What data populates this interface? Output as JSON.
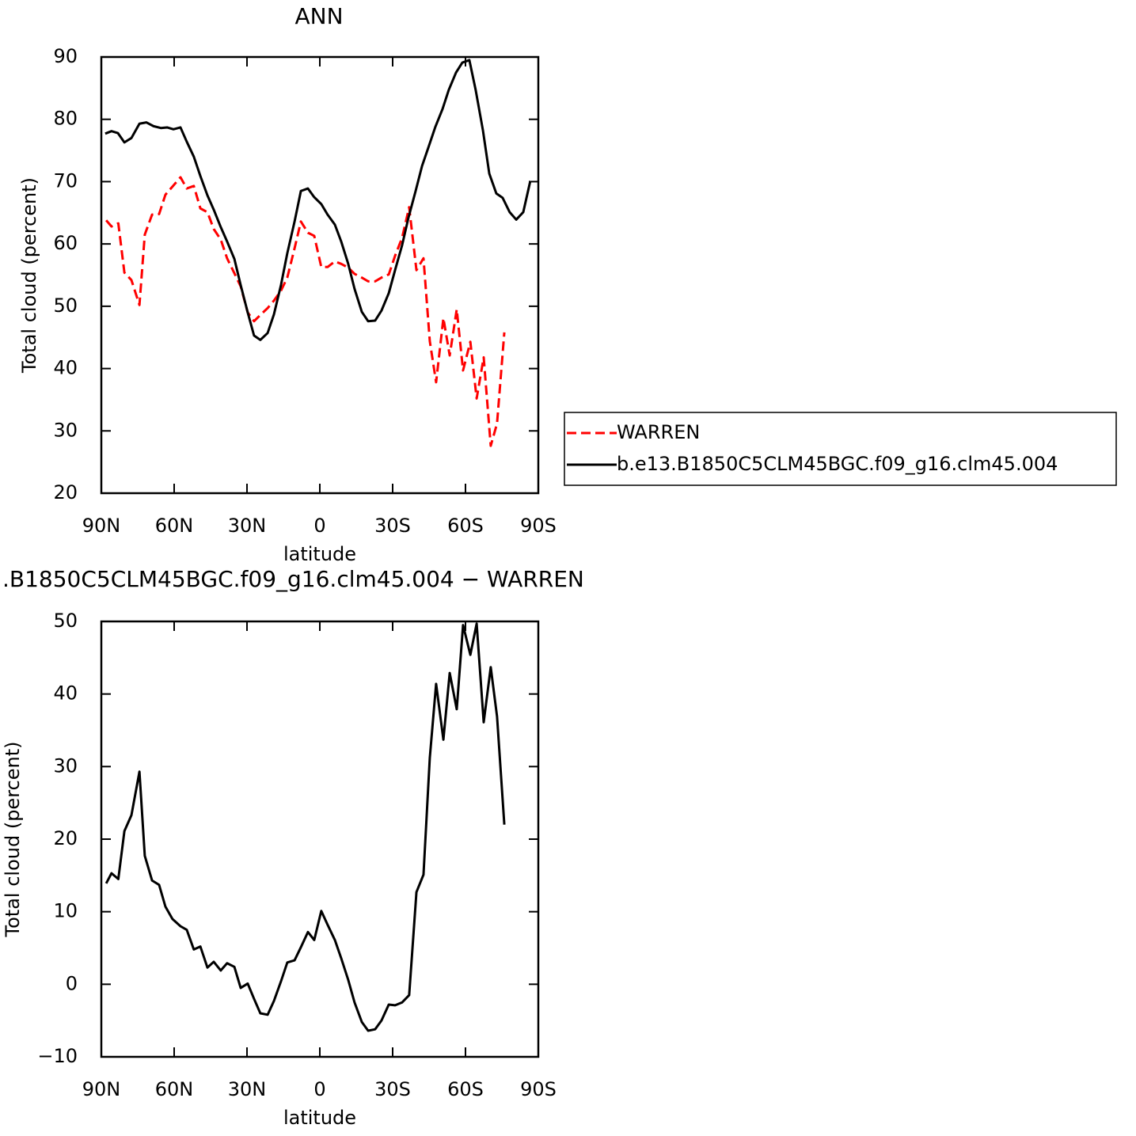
{
  "chart_data": [
    {
      "type": "line",
      "title": "ANN",
      "xlabel": "latitude",
      "ylabel": "Total cloud (percent)",
      "xlim": [
        90,
        -90
      ],
      "ylim": [
        20,
        90
      ],
      "xticks": [
        {
          "value": 90,
          "label": "90N"
        },
        {
          "value": 60,
          "label": "60N"
        },
        {
          "value": 30,
          "label": "30N"
        },
        0,
        {
          "value": -30,
          "label": "30S"
        },
        {
          "value": -60,
          "label": "60S"
        },
        {
          "value": -90,
          "label": "90S"
        }
      ],
      "yticks": [
        20,
        30,
        40,
        50,
        60,
        70,
        80,
        90
      ],
      "legend": "right",
      "series": [
        {
          "name": "WARREN",
          "color": "#ff0000",
          "dashed": true,
          "x": [
            88,
            85.8,
            83,
            80.5,
            77.6,
            74.3,
            72.1,
            69.1,
            66.2,
            63.6,
            60.7,
            57.4,
            54.8,
            51.9,
            49.2,
            46.3,
            43.7,
            40.8,
            38.2,
            35.2,
            32.6,
            29.7,
            27.1,
            24.5,
            21.5,
            18.9,
            16.0,
            13.4,
            10.4,
            7.8,
            4.9,
            2.3,
            -0.6,
            -3.2,
            -6.2,
            -8.8,
            -11.7,
            -14.3,
            -17.3,
            -19.9,
            -22.8,
            -25.4,
            -28.4,
            -31.0,
            -33.9,
            -36.8,
            -39.8,
            -42.7,
            -45.3,
            -47.9,
            -50.9,
            -53.5,
            -56.4,
            -59.0,
            -62.0,
            -64.6,
            -67.5,
            -70.4,
            -73.0,
            -76.0
          ],
          "values": [
            63.8,
            62.8,
            63.3,
            55.4,
            54.2,
            50.2,
            61.5,
            64.7,
            64.8,
            67.9,
            69.2,
            70.7,
            68.9,
            69.3,
            65.7,
            65.1,
            62.4,
            60.7,
            57.7,
            55.3,
            53.2,
            49.0,
            47.6,
            48.6,
            49.7,
            50.9,
            52.5,
            54.6,
            59.3,
            63.6,
            61.8,
            61.3,
            56.3,
            56.3,
            57.2,
            56.8,
            56.2,
            55.2,
            54.6,
            54.0,
            54.0,
            54.6,
            55.1,
            58.1,
            61.0,
            65.9,
            55.8,
            57.7,
            44.4,
            37.8,
            48.1,
            42.1,
            49.5,
            39.7,
            44.3,
            35.2,
            41.8,
            27.6,
            31.2,
            45.8
          ]
        },
        {
          "name": "b.e13.B1850C5CLM45BGC.f09_g16.clm45.004",
          "color": "#000000",
          "dashed": false,
          "x": [
            88.4,
            85.8,
            83.2,
            80.5,
            77.6,
            74.3,
            71.4,
            68.5,
            65.5,
            62.9,
            60.3,
            57.4,
            54.8,
            51.9,
            49.2,
            46.3,
            43.7,
            40.8,
            38.2,
            35.2,
            32.6,
            29.7,
            27.1,
            24.5,
            21.5,
            18.9,
            16.0,
            13.4,
            10.4,
            7.8,
            4.9,
            2.3,
            -0.6,
            -3.2,
            -6.2,
            -8.8,
            -11.7,
            -14.3,
            -17.3,
            -19.9,
            -22.8,
            -25.4,
            -28.4,
            -31.0,
            -33.9,
            -36.5,
            -39.4,
            -42.1,
            -45.0,
            -47.6,
            -50.5,
            -53.1,
            -56.1,
            -58.7,
            -61.6,
            -64.2,
            -67.2,
            -69.8,
            -72.7,
            -75.3,
            -78.2,
            -80.9,
            -83.8,
            -86.7
          ],
          "values": [
            77.7,
            78.1,
            77.8,
            76.3,
            77.0,
            79.3,
            79.5,
            78.9,
            78.6,
            78.7,
            78.4,
            78.7,
            76.4,
            74.0,
            70.9,
            67.8,
            65.5,
            62.7,
            60.4,
            57.6,
            53.4,
            49.0,
            45.3,
            44.6,
            45.7,
            48.7,
            53.4,
            58.5,
            63.6,
            68.5,
            68.9,
            67.5,
            66.4,
            64.7,
            63.1,
            60.4,
            56.8,
            52.8,
            49.1,
            47.6,
            47.7,
            49.3,
            52.1,
            55.8,
            59.8,
            64.2,
            68.4,
            72.5,
            75.8,
            78.8,
            81.6,
            84.7,
            87.5,
            89.1,
            89.5,
            84.7,
            78.2,
            71.3,
            68.1,
            67.4,
            65.1,
            63.9,
            65.1,
            70.1
          ]
        }
      ]
    },
    {
      "type": "line",
      "title": ".B1850C5CLM45BGC.f09_g16.clm45.004 − WARREN",
      "xlabel": "latitude",
      "ylabel": "Total cloud (percent)",
      "xlim": [
        90,
        -90
      ],
      "ylim": [
        -10,
        50
      ],
      "xticks": [
        {
          "value": 90,
          "label": "90N"
        },
        {
          "value": 60,
          "label": "60N"
        },
        {
          "value": 30,
          "label": "30N"
        },
        0,
        {
          "value": -30,
          "label": "30S"
        },
        {
          "value": -60,
          "label": "60S"
        },
        {
          "value": -90,
          "label": "90S"
        }
      ],
      "yticks": [
        {
          "value": -10,
          "label": "−10"
        },
        0,
        10,
        20,
        30,
        40,
        50
      ],
      "series": [
        {
          "color": "#000000",
          "dashed": false,
          "x": [
            88,
            85.8,
            83,
            80.5,
            77.6,
            74.3,
            72.1,
            69.1,
            66.2,
            63.6,
            60.7,
            57.4,
            54.8,
            51.9,
            49.2,
            46.3,
            43.7,
            40.8,
            38.2,
            35.2,
            32.6,
            29.7,
            27.1,
            24.5,
            21.5,
            18.9,
            16.0,
            13.4,
            10.4,
            7.8,
            4.9,
            2.3,
            -0.6,
            -3.2,
            -6.2,
            -8.8,
            -11.7,
            -14.3,
            -17.3,
            -19.9,
            -22.8,
            -25.4,
            -28.4,
            -31.0,
            -33.9,
            -36.8,
            -39.8,
            -42.7,
            -45.3,
            -47.9,
            -50.9,
            -53.5,
            -56.4,
            -59.0,
            -62.0,
            -64.6,
            -67.5,
            -70.4,
            -73.0,
            -76.0
          ],
          "values": [
            13.9,
            15.3,
            14.5,
            21.1,
            23.3,
            29.3,
            17.7,
            14.3,
            13.7,
            10.7,
            9.0,
            8.0,
            7.5,
            4.8,
            5.2,
            2.3,
            3.1,
            1.9,
            2.9,
            2.4,
            -0.5,
            0.1,
            -2.0,
            -4.0,
            -4.2,
            -2.3,
            0.4,
            3.0,
            3.3,
            5.1,
            7.2,
            6.1,
            10.1,
            8.2,
            6.1,
            3.6,
            0.6,
            -2.5,
            -5.2,
            -6.4,
            -6.2,
            -5.0,
            -2.8,
            -2.9,
            -2.5,
            -1.5,
            12.7,
            15.1,
            31.2,
            41.4,
            33.7,
            42.9,
            37.9,
            49.5,
            45.4,
            49.7,
            36.1,
            43.7,
            36.9,
            22.0
          ]
        }
      ]
    }
  ]
}
